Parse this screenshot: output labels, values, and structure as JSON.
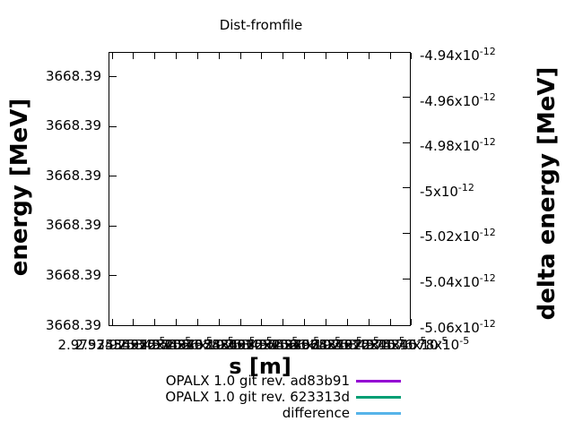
{
  "title": "Dist-fromfile",
  "axes": {
    "x": {
      "label": "s [m]",
      "ticks": [
        {
          "m": "2.9753455x10",
          "e": "-5"
        },
        {
          "m": "2.97534552x10",
          "e": "-5"
        },
        {
          "m": "2.97534554x10",
          "e": "-5"
        },
        {
          "m": "2.97534556x10",
          "e": "-5"
        },
        {
          "m": "2.97534558x10",
          "e": "-5"
        },
        {
          "m": "2.9753456x10",
          "e": "-5"
        },
        {
          "m": "2.97534562x10",
          "e": "-5"
        },
        {
          "m": "2.97534564x10",
          "e": "-5"
        },
        {
          "m": "2.97534566x10",
          "e": "-5"
        },
        {
          "m": "2.97534568x10",
          "e": "-5"
        },
        {
          "m": "2.9753457x10",
          "e": "-5"
        },
        {
          "m": "2.97534572x10",
          "e": "-5"
        },
        {
          "m": "2.97534574x10",
          "e": "-5"
        },
        {
          "m": "2.97534576x10",
          "e": "-5"
        },
        {
          "m": "2.97534578x10",
          "e": "-5"
        }
      ]
    },
    "y_left": {
      "label": "energy [MeV]",
      "ticks": [
        "3668.39",
        "3668.39",
        "3668.39",
        "3668.39",
        "3668.39",
        "3668.39"
      ]
    },
    "y_right": {
      "label": "delta energy [MeV]",
      "ticks": [
        {
          "m": "-4.94x10",
          "e": "-12"
        },
        {
          "m": "-4.96x10",
          "e": "-12"
        },
        {
          "m": "-4.98x10",
          "e": "-12"
        },
        {
          "m": "-5x10",
          "e": "-12"
        },
        {
          "m": "-5.02x10",
          "e": "-12"
        },
        {
          "m": "-5.04x10",
          "e": "-12"
        },
        {
          "m": "-5.06x10",
          "e": "-12"
        }
      ]
    }
  },
  "legend": {
    "entries": [
      {
        "label": "OPALX 1.0 git rev. ad83b91",
        "color": "#9400d3"
      },
      {
        "label": "OPALX 1.0 git rev. 623313d",
        "color": "#009e73"
      },
      {
        "label": "difference",
        "color": "#56b4e9"
      }
    ]
  },
  "chart_data": {
    "type": "line",
    "title": "Dist-fromfile",
    "xlabel": "s [m]",
    "ylabel": "energy [MeV]",
    "y2label": "delta energy [MeV]",
    "x_tick_labels": [
      "2.9753455x10^-5",
      "2.97534552x10^-5",
      "2.97534554x10^-5",
      "2.97534556x10^-5",
      "2.97534558x10^-5",
      "2.9753456x10^-5",
      "2.97534562x10^-5",
      "2.97534564x10^-5",
      "2.97534566x10^-5",
      "2.97534568x10^-5",
      "2.9753457x10^-5",
      "2.97534572x10^-5",
      "2.97534574x10^-5",
      "2.97534576x10^-5",
      "2.97534578x10^-5"
    ],
    "y_tick_labels": [
      "3668.39",
      "3668.39",
      "3668.39",
      "3668.39",
      "3668.39",
      "3668.39"
    ],
    "y2_tick_labels": [
      "-4.94x10^-12",
      "-4.96x10^-12",
      "-4.98x10^-12",
      "-5x10^-12",
      "-5.02x10^-12",
      "-5.04x10^-12",
      "-5.06x10^-12"
    ],
    "y2lim": [
      -5.06e-12,
      -4.94e-12
    ],
    "grid": false,
    "legend_position": "bottom-center",
    "series": [
      {
        "name": "OPALX 1.0 git rev. ad83b91",
        "color": "#9400d3",
        "values": []
      },
      {
        "name": "OPALX 1.0 git rev. 623313d",
        "color": "#009e73",
        "values": []
      },
      {
        "name": "difference",
        "color": "#56b4e9",
        "values": []
      }
    ],
    "note": "plot interior contains no visible curves"
  }
}
